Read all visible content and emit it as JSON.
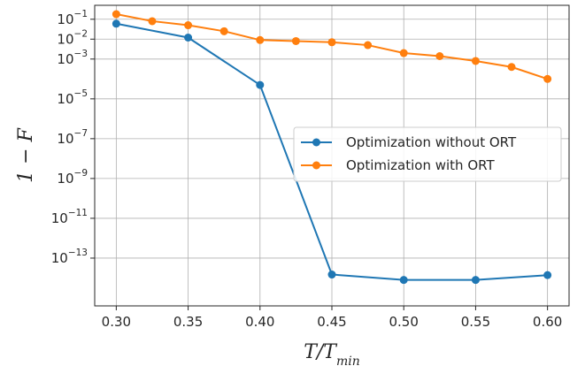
{
  "chart_data": {
    "type": "line",
    "xlabel": "T/T_min",
    "ylabel": "1 − F",
    "y_scale": "log",
    "xlim": [
      0.285,
      0.615
    ],
    "ylim_log10": [
      -15.4,
      -0.3
    ],
    "grid": true,
    "legend_position": "center-right",
    "x_ticks": [
      "0.30",
      "0.35",
      "0.40",
      "0.45",
      "0.50",
      "0.55",
      "0.60"
    ],
    "y_ticks": [
      {
        "base": "10",
        "exp": "−1",
        "log10": -1
      },
      {
        "base": "10",
        "exp": "−2",
        "log10": -2
      },
      {
        "base": "10",
        "exp": "−3",
        "log10": -3
      },
      {
        "base": "10",
        "exp": "−5",
        "log10": -5
      },
      {
        "base": "10",
        "exp": "−7",
        "log10": -7
      },
      {
        "base": "10",
        "exp": "−9",
        "log10": -9
      },
      {
        "base": "10",
        "exp": "−11",
        "log10": -11
      },
      {
        "base": "10",
        "exp": "−13",
        "log10": -13
      }
    ],
    "series": [
      {
        "name": "Optimization without ORT",
        "color": "#1f77b4",
        "x": [
          0.3,
          0.35,
          0.4,
          0.45,
          0.5,
          0.55,
          0.6
        ],
        "y": [
          0.06,
          0.012,
          5e-05,
          1.5e-14,
          8e-15,
          8e-15,
          1.4e-14
        ]
      },
      {
        "name": "Optimization with ORT",
        "color": "#ff7f0e",
        "x": [
          0.3,
          0.325,
          0.35,
          0.375,
          0.4,
          0.425,
          0.45,
          0.475,
          0.5,
          0.525,
          0.55,
          0.575,
          0.6
        ],
        "y": [
          0.18,
          0.08,
          0.05,
          0.025,
          0.009,
          0.008,
          0.007,
          0.005,
          0.002,
          0.0014,
          0.0008,
          0.0004,
          0.0001
        ]
      }
    ]
  }
}
